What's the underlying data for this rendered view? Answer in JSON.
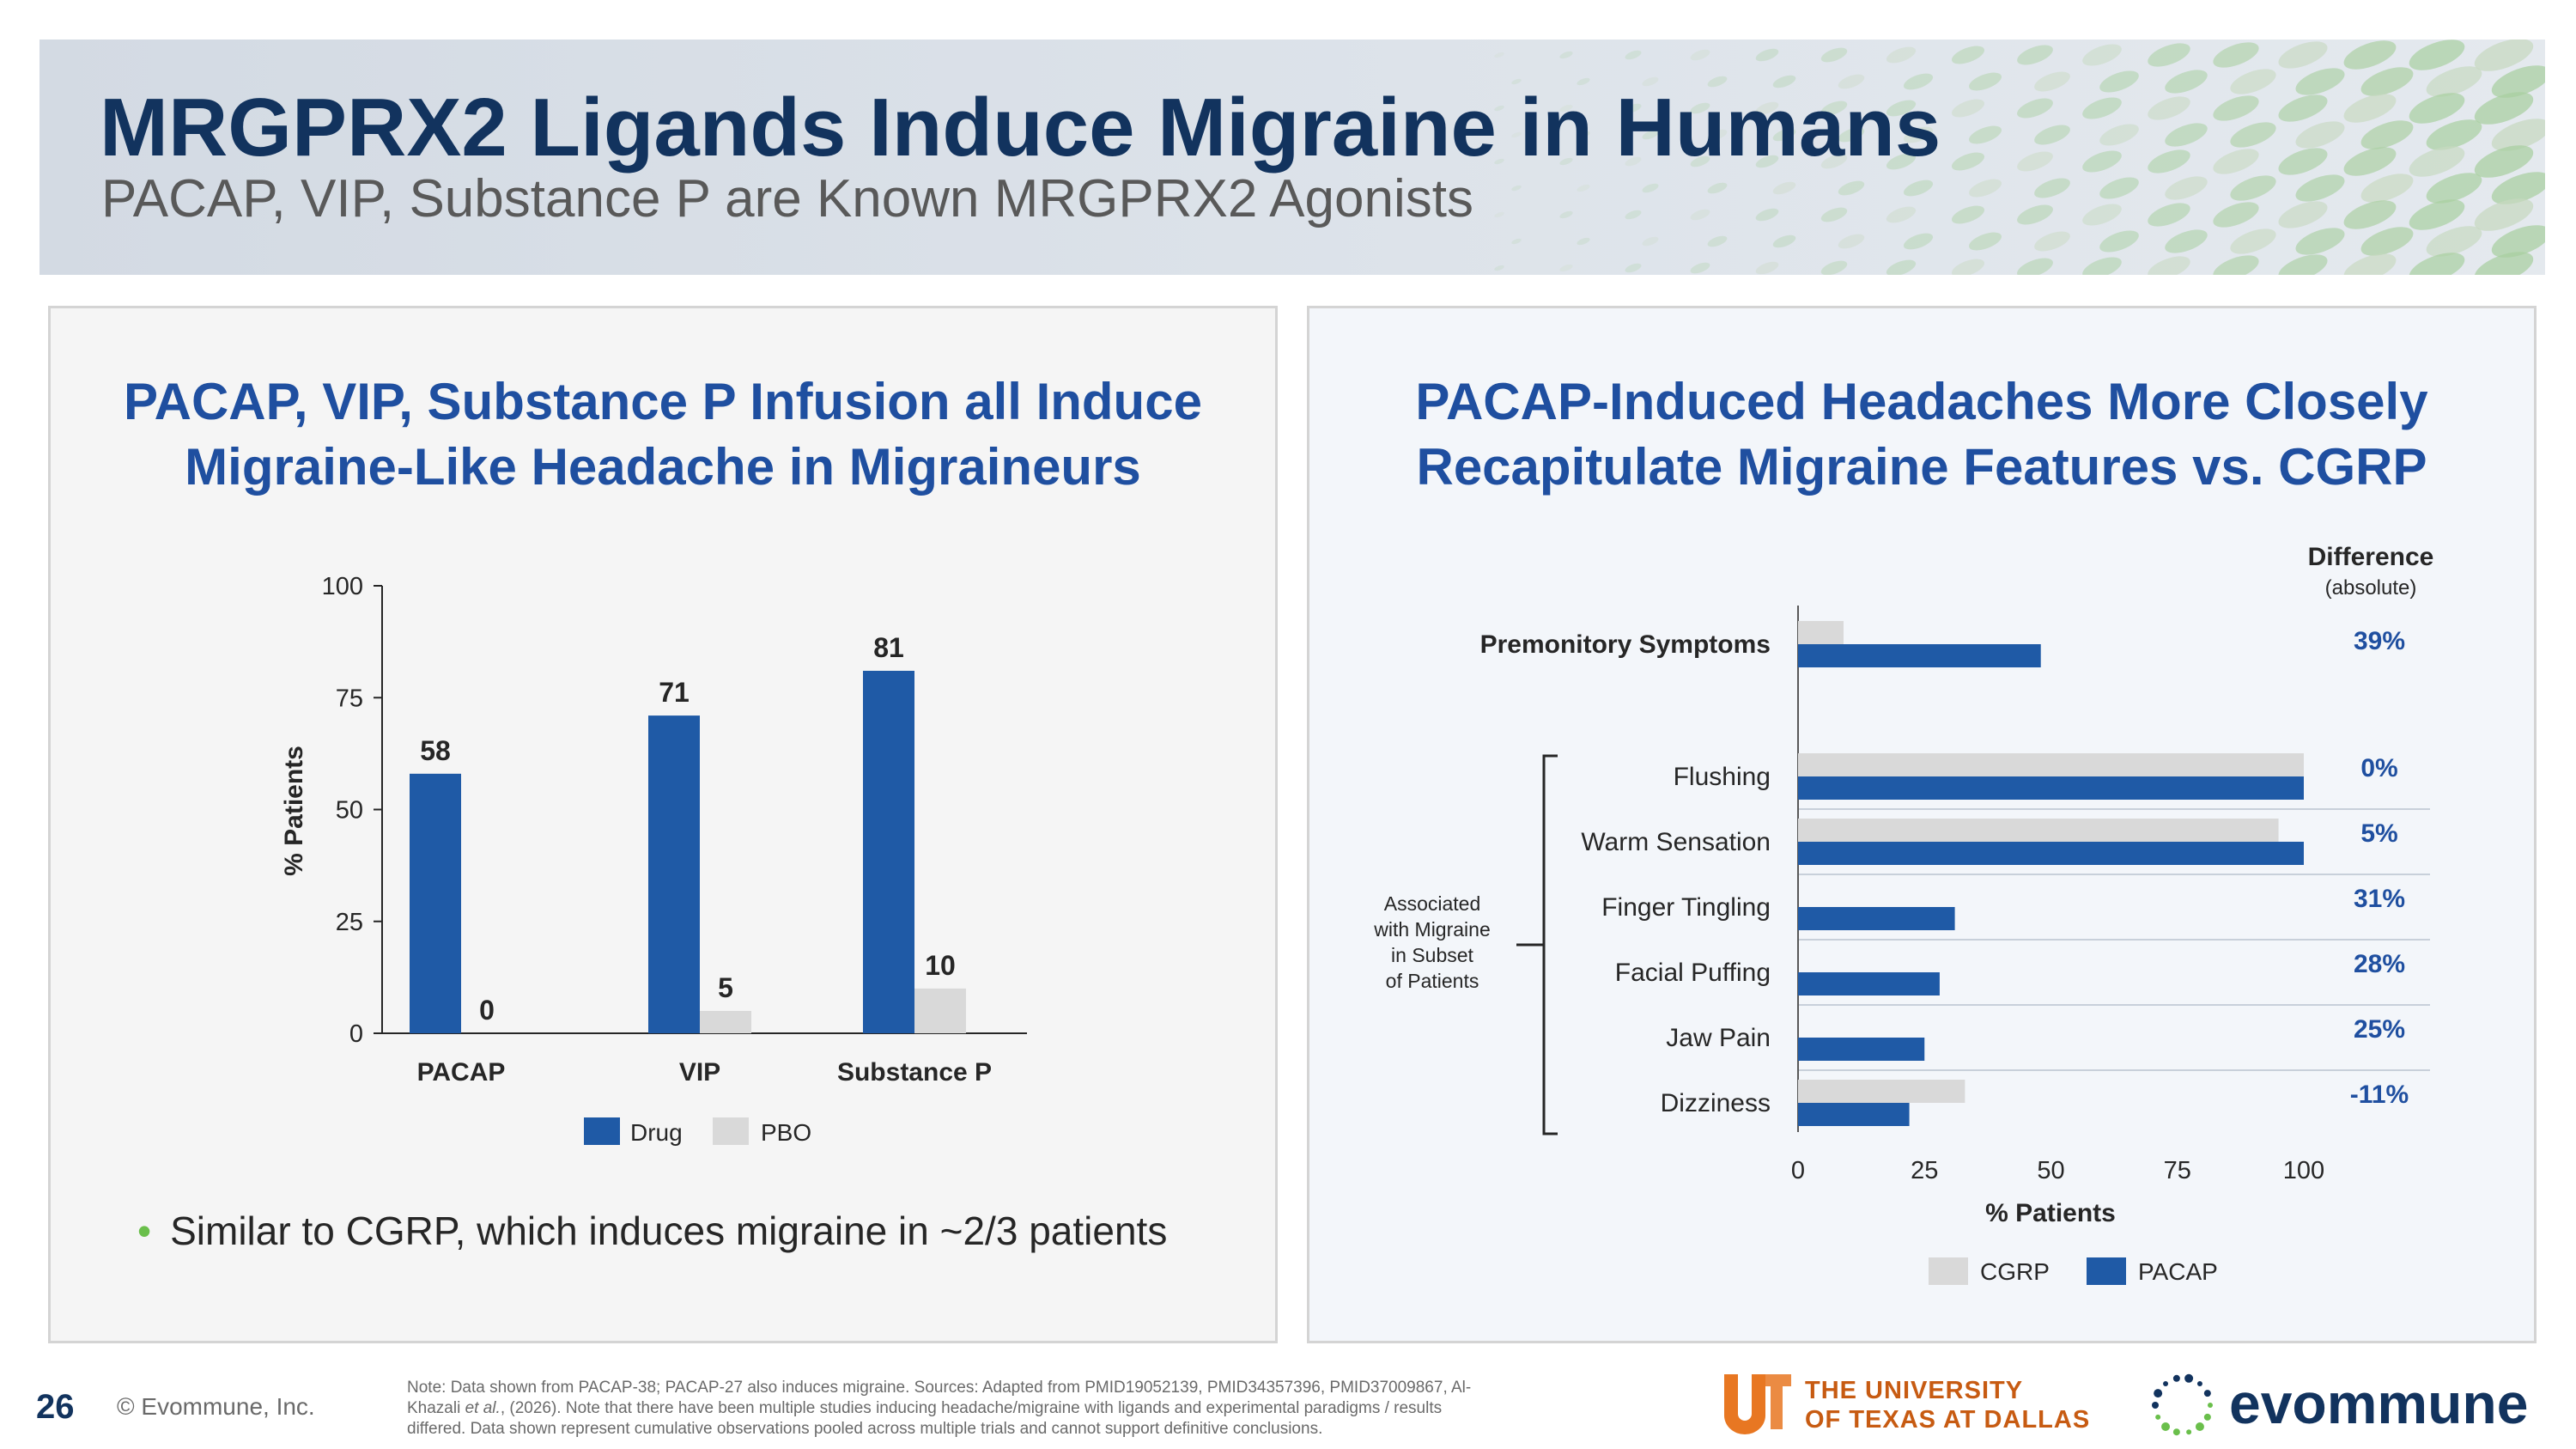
{
  "header": {
    "title": "MRGPRX2 Ligands Induce Migraine in Humans",
    "subtitle": "PACAP, VIP, Substance P are Known MRGPRX2 Agonists"
  },
  "left_panel": {
    "title_line1": "PACAP, VIP, Substance P Infusion all Induce",
    "title_line2": "Migraine-Like Headache in Migraineurs",
    "bullet": "Similar to CGRP, which induces migraine in ~2/3 patients"
  },
  "right_panel": {
    "title_line1": "PACAP-Induced Headaches More Closely",
    "title_line2": "Recapitulate Migraine Features vs. CGRP",
    "diff_header": "Difference",
    "diff_subheader": "(absolute)",
    "bracket_label": [
      "Associated",
      "with Migraine",
      "in Subset",
      "of Patients"
    ]
  },
  "footer": {
    "page_number": "26",
    "copyright": "© Evommune, Inc.",
    "note_line1": "Note: Data shown from PACAP-38; PACAP-27 also induces migraine.  Sources: Adapted from PMID19052139, PMID34357396, PMID37009867, Al-",
    "note_line2_pre": "Khazali ",
    "note_line2_em": "et al.",
    "note_line2_post": ", (2026).  Note that there have been multiple studies inducing headache/migraine with ligands and experimental paradigms / results",
    "note_line3": "differed. Data shown represent cumulative observations pooled across multiple trials and cannot support definitive conclusions.",
    "utd_line1": "THE UNIVERSITY",
    "utd_line2": "OF TEXAS AT DALLAS",
    "utd_logo_letters": "UTD",
    "evommune_logo": "evommune"
  },
  "colors": {
    "drug": "#1f5aa6",
    "pbo": "#d9d9d9",
    "title_blue": "#1f4fa0",
    "navy": "#12335e"
  },
  "chart_data": [
    {
      "type": "bar",
      "categories": [
        "PACAP",
        "VIP",
        "Substance P"
      ],
      "series": [
        {
          "name": "Drug",
          "values": [
            58,
            71,
            81
          ]
        },
        {
          "name": "PBO",
          "values": [
            0,
            5,
            10
          ]
        }
      ],
      "ylabel": "% Patients",
      "xlabel": "",
      "ylim": [
        0,
        100
      ],
      "yticks": [
        0,
        25,
        50,
        75,
        100
      ],
      "legend": "bottom"
    },
    {
      "type": "bar",
      "orientation": "horizontal",
      "categories": [
        "Premonitory Symptoms",
        "Flushing",
        "Warm Sensation",
        "Finger Tingling",
        "Facial Puffing",
        "Jaw Pain",
        "Dizziness"
      ],
      "series": [
        {
          "name": "CGRP",
          "values": [
            9,
            100,
            95,
            0,
            0,
            0,
            33
          ]
        },
        {
          "name": "PACAP",
          "values": [
            48,
            100,
            100,
            31,
            28,
            25,
            22
          ]
        }
      ],
      "differences": [
        "39%",
        "0%",
        "5%",
        "31%",
        "28%",
        "25%",
        "-11%"
      ],
      "xlabel": "% Patients",
      "xlim": [
        0,
        100
      ],
      "xticks": [
        0,
        25,
        50,
        75,
        100
      ],
      "legend": "bottom"
    }
  ]
}
